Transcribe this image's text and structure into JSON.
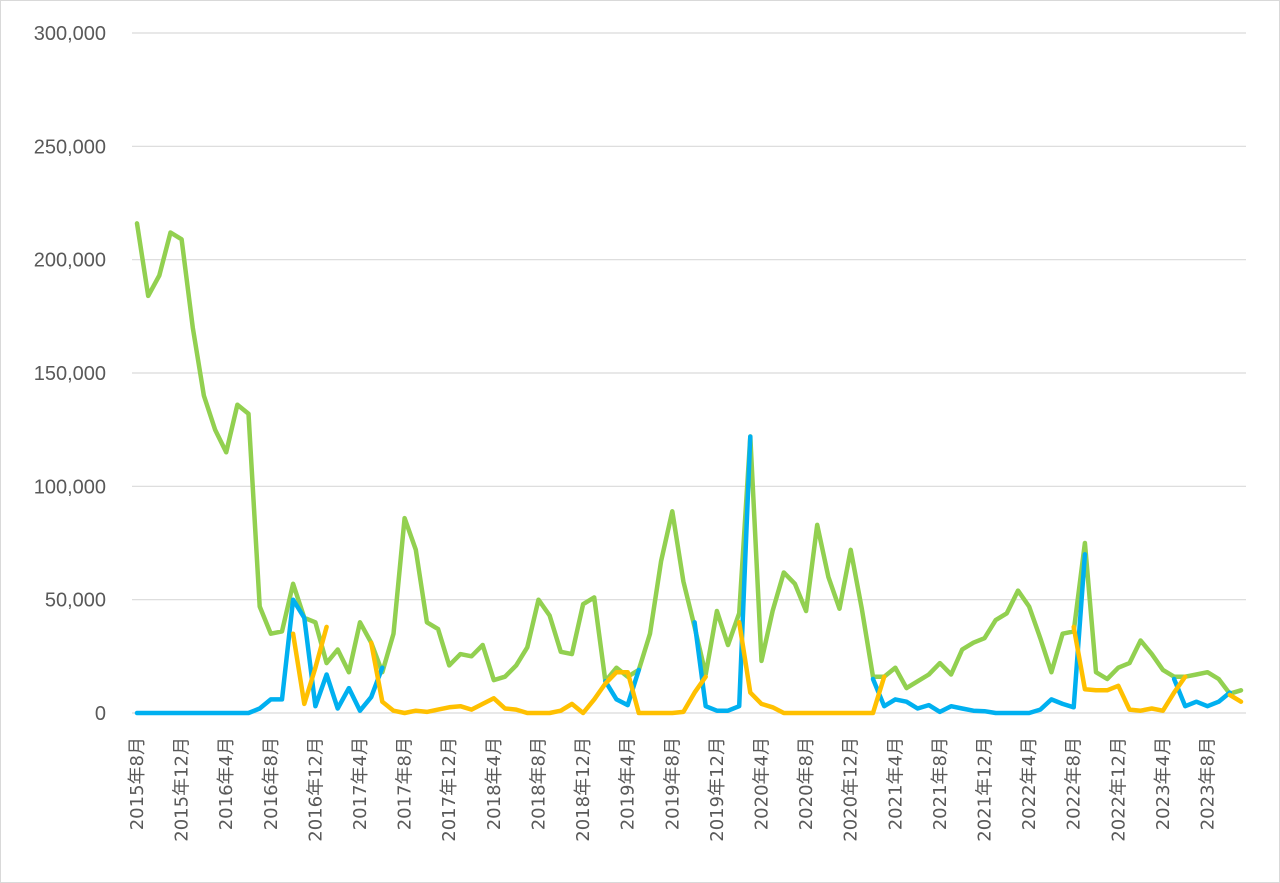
{
  "chart_data": {
    "type": "line",
    "title": "",
    "xlabel": "",
    "ylabel": "",
    "ylim": [
      0,
      300000
    ],
    "yticks": [
      0,
      50000,
      100000,
      150000,
      200000,
      250000,
      300000
    ],
    "ytick_labels": [
      "0",
      "50,000",
      "100,000",
      "150,000",
      "200,000",
      "250,000",
      "300,000"
    ],
    "grid": true,
    "legend": "none",
    "x_tick_labels": [
      "2015年8月",
      "2015年12月",
      "2016年4月",
      "2016年8月",
      "2016年12月",
      "2017年4月",
      "2017年8月",
      "2017年12月",
      "2018年4月",
      "2018年8月",
      "2018年12月",
      "2019年4月",
      "2019年8月",
      "2019年12月",
      "2020年4月",
      "2020年8月",
      "2020年12月",
      "2021年4月",
      "2021年8月",
      "2021年12月",
      "2022年4月",
      "2022年8月",
      "2022年12月",
      "2023年4月",
      "2023年8月"
    ],
    "x_start": "2015-08",
    "x_end": "2023-11",
    "series": [
      {
        "color": "#92D050",
        "values": [
          216000,
          184000,
          193000,
          212000,
          209000,
          170000,
          140000,
          125000,
          115000,
          136000,
          132000,
          47000,
          35000,
          36000,
          57000,
          42000,
          40000,
          22000,
          28000,
          18000,
          40000,
          31000,
          18000,
          35000,
          86000,
          72000,
          40000,
          37000,
          21000,
          26000,
          25000,
          30000,
          14500,
          16000,
          21000,
          29000,
          50000,
          43000,
          27000,
          26000,
          48000,
          51000,
          14000,
          20000,
          16000,
          19000,
          35000,
          67000,
          89000,
          58000,
          38000,
          17000,
          45000,
          30000,
          44000,
          122000,
          23000,
          45000,
          62000,
          57000,
          45000,
          83000,
          60000,
          46000,
          72000,
          46000,
          16000,
          16000,
          20000,
          11000,
          14000,
          17000,
          22000,
          17000,
          28000,
          31000,
          33000,
          41000,
          44000,
          54000,
          47000,
          33000,
          18000,
          35000,
          36000,
          75000,
          18000,
          15000,
          20000,
          22000,
          32000,
          26000,
          19000,
          16000,
          16000,
          17000,
          18000,
          15000,
          8500,
          10000
        ]
      },
      {
        "color": "#00B0F0",
        "values": [
          0,
          0,
          0,
          0,
          0,
          0,
          0,
          0,
          0,
          0,
          0,
          2000,
          6000,
          6000,
          50000,
          42000,
          3000,
          17000,
          2000,
          11000,
          1000,
          7000,
          20000,
          null,
          null,
          null,
          null,
          null,
          null,
          null,
          null,
          null,
          null,
          null,
          null,
          null,
          null,
          null,
          null,
          null,
          null,
          null,
          14000,
          6000,
          3500,
          19000,
          null,
          null,
          null,
          null,
          40000,
          3000,
          1000,
          1000,
          3000,
          122000,
          null,
          null,
          null,
          null,
          null,
          null,
          null,
          null,
          null,
          null,
          15000,
          3000,
          6000,
          5000,
          2000,
          3500,
          500,
          3000,
          2000,
          1000,
          800,
          0,
          0,
          0,
          0,
          1500,
          6000,
          4000,
          2500,
          70000,
          null,
          null,
          null,
          null,
          null,
          null,
          null,
          15000,
          3000,
          5000,
          3000,
          5000,
          9000,
          null
        ]
      },
      {
        "color": "#FFC000",
        "values": [
          null,
          null,
          null,
          null,
          null,
          null,
          null,
          null,
          null,
          null,
          null,
          null,
          null,
          null,
          35000,
          4000,
          20000,
          38000,
          null,
          null,
          null,
          31000,
          5000,
          1000,
          0,
          1000,
          500,
          1500,
          2500,
          3000,
          1500,
          4000,
          6500,
          2000,
          1500,
          0,
          0,
          0,
          1000,
          4000,
          0,
          6000,
          13000,
          18000,
          18000,
          0,
          0,
          0,
          0,
          500,
          9000,
          16000,
          null,
          null,
          40000,
          9000,
          4000,
          2500,
          0,
          0,
          0,
          0,
          0,
          0,
          0,
          0,
          0,
          16000,
          null,
          null,
          null,
          null,
          null,
          null,
          null,
          null,
          null,
          null,
          null,
          null,
          null,
          null,
          null,
          null,
          38000,
          10500,
          10000,
          10000,
          12000,
          1500,
          1000,
          2000,
          1000,
          9000,
          16000,
          null,
          null,
          null,
          8000,
          5000
        ]
      }
    ]
  }
}
